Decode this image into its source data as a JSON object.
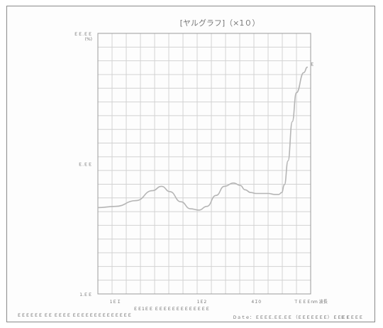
{
  "chart_data": {
    "type": "line",
    "title": "[ヤルグラフ]（×1０）",
    "x_scale": "log",
    "y_scale": "log",
    "xlim": [
      80,
      1200
    ],
    "ylim": [
      1,
      100
    ],
    "x_ticks": [
      {
        "value": 100,
        "label": "1ＥＩ"
      },
      {
        "value": 300,
        "label": "1Ｅ2"
      },
      {
        "value": 600,
        "label": "4Ｉ0"
      },
      {
        "value": 1200,
        "label": "ＴＥＥＥnm 波長"
      }
    ],
    "y_ticks": [
      {
        "value": 100,
        "label": "ＥＥ.ＥＥ\n(%)"
      },
      {
        "value": 10,
        "label": "Ｅ.ＥＥ"
      },
      {
        "value": 1,
        "label": "1.ＥＥ"
      }
    ],
    "grid": true,
    "legend": "none",
    "series": [
      {
        "color": "#b5b5b5",
        "end_label": "Ｅ",
        "x": [
          80,
          100,
          130,
          160,
          180,
          200,
          230,
          260,
          290,
          320,
          360,
          400,
          450,
          490,
          520,
          560,
          600,
          650,
          700,
          760,
          800,
          830,
          860,
          900,
          950,
          1000,
          1100,
          1150
        ],
        "y": [
          4.6,
          4.7,
          5.2,
          6.2,
          6.7,
          6.1,
          5.1,
          4.5,
          4.4,
          4.7,
          5.7,
          6.7,
          7.1,
          6.8,
          6.3,
          6.0,
          5.9,
          5.9,
          5.9,
          5.8,
          5.8,
          6.0,
          6.9,
          10.5,
          21,
          35,
          50,
          55
        ]
      }
    ]
  },
  "footer": {
    "left": "ＥＥＥＥＥＥ ＥＥ ＥＥＥＥ ＥＥＥＥＥＥＥＥＥＥＥＥＥＥ",
    "center": "ＥＥ1ＥＥ ＥＥＥＥＥＥＥＥＥＥＥＥＥ",
    "right": "Ｄａｔｅ： ＥＥＥＥ.ＥＥ.ＥＥ （ＥＥＥＥＥＥＥ） ＥＥＥＥ",
    "page": "Ｅ ＥＥＥＥ"
  }
}
